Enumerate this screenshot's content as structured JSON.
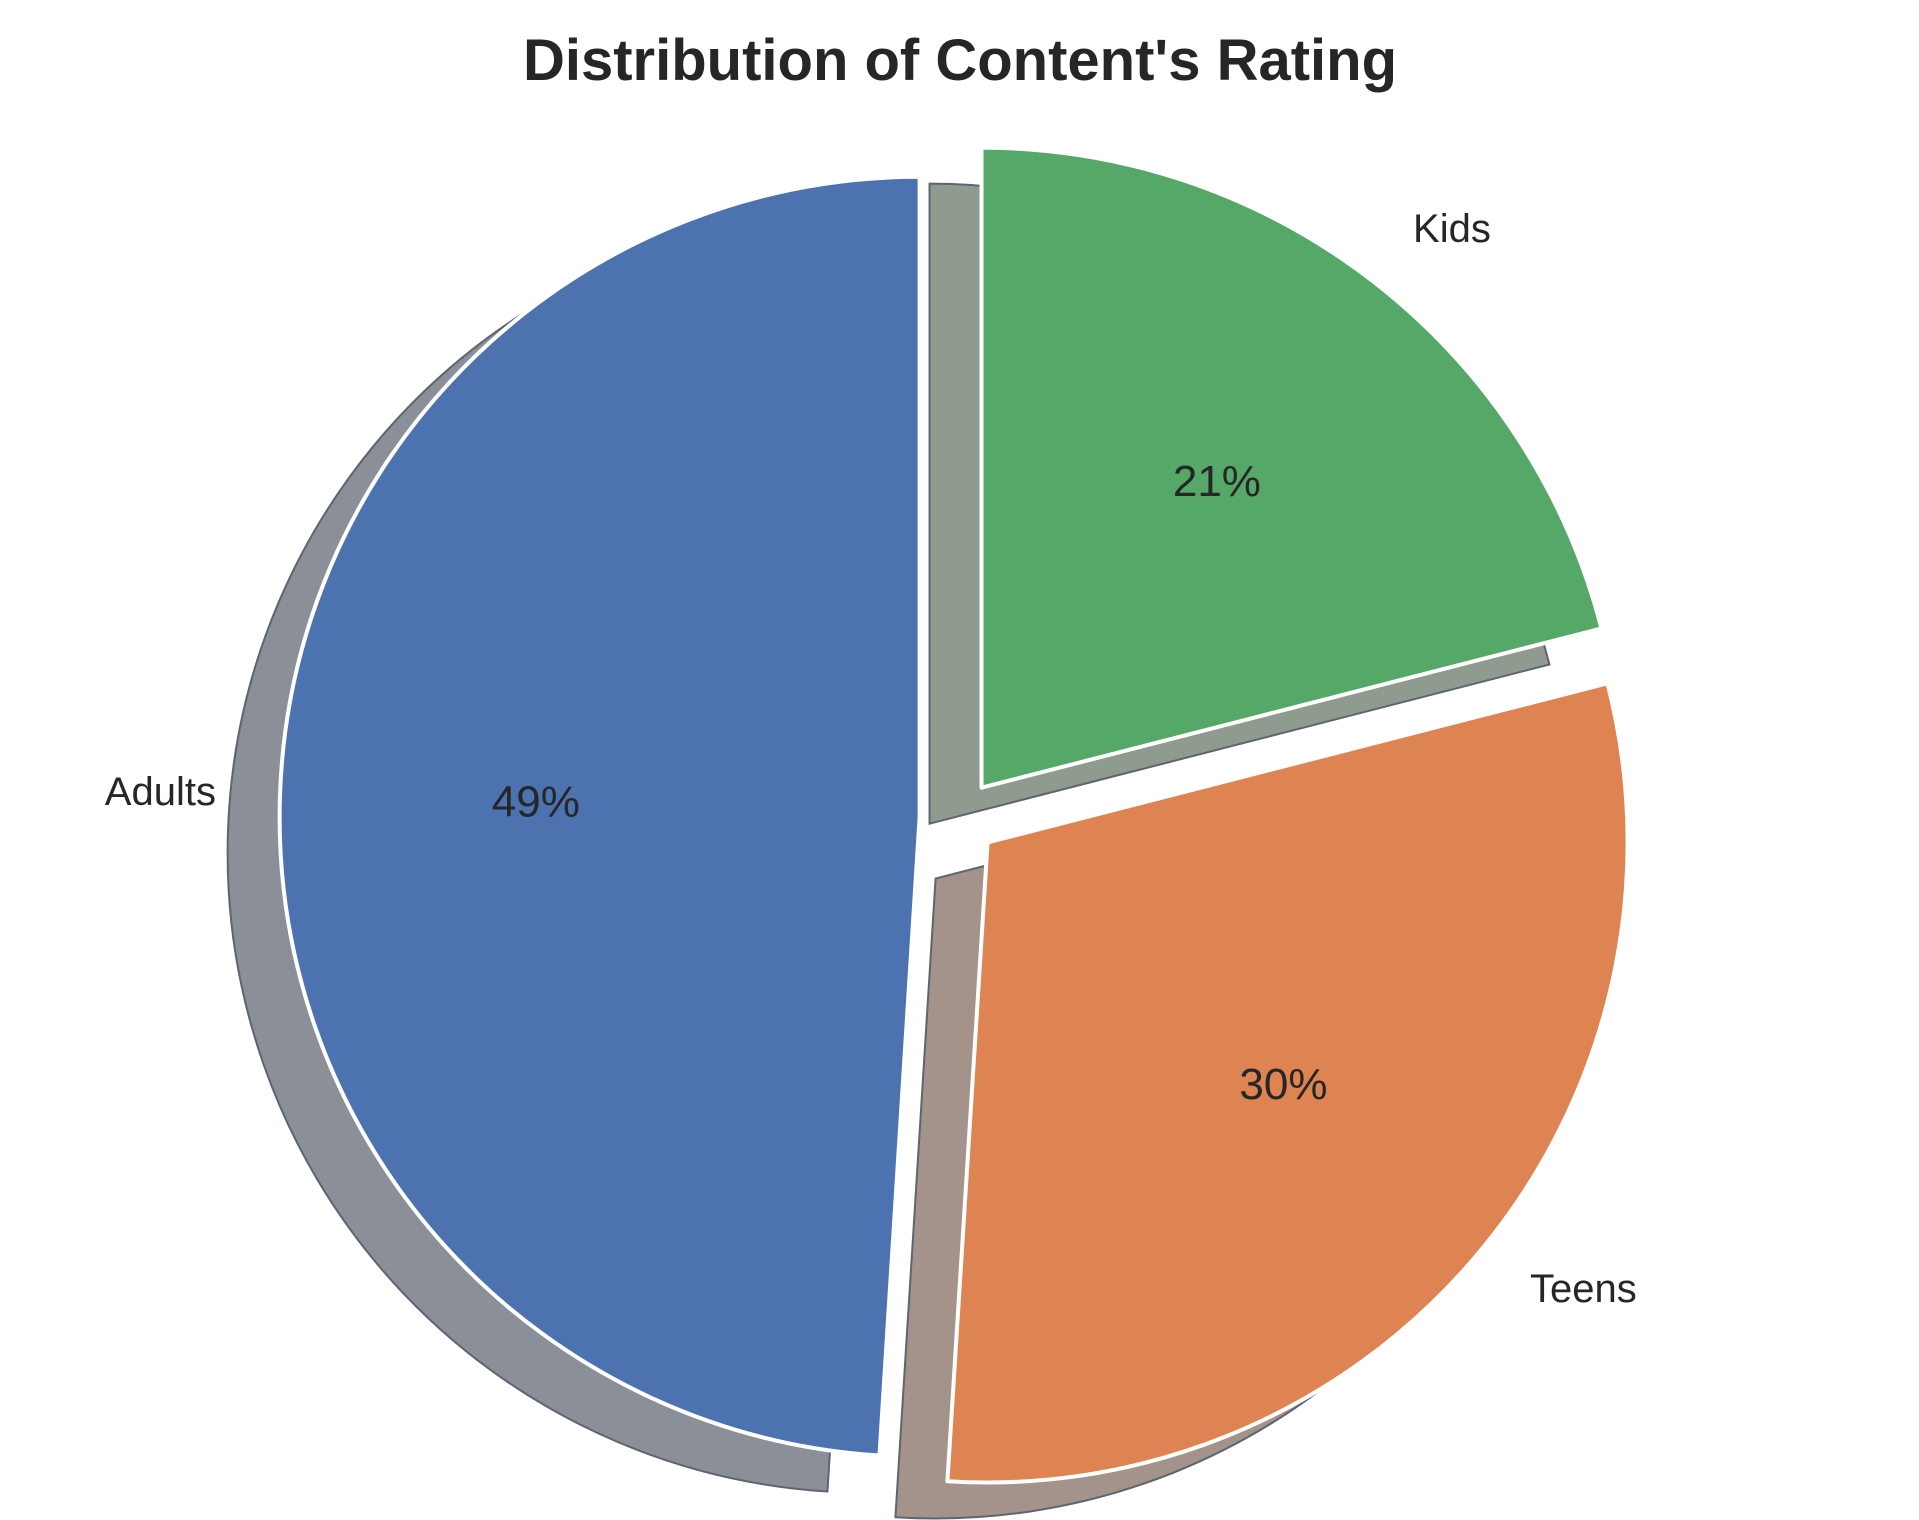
{
  "chart_data": {
    "type": "pie",
    "title": "Distribution of Content's Rating",
    "labels": [
      "Adults",
      "Teens",
      "Kids"
    ],
    "values": [
      49,
      30,
      21
    ],
    "value_labels": [
      "49%",
      "30%",
      "21%"
    ],
    "colors": [
      "#4c72b0",
      "#dd8452",
      "#55a868"
    ],
    "shadow": true,
    "exploded": true,
    "start_angle_deg": 90,
    "direction": "counterclockwise",
    "legend": "none"
  }
}
